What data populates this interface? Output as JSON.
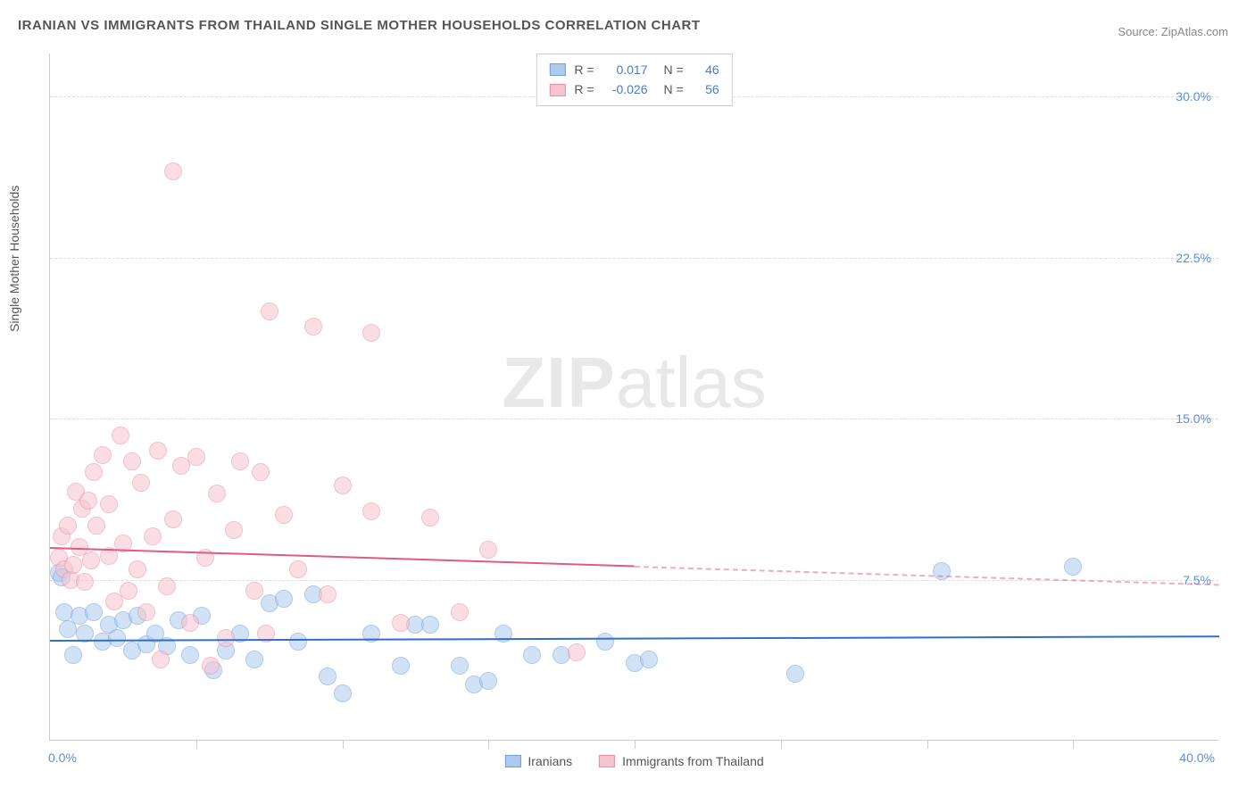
{
  "title": "IRANIAN VS IMMIGRANTS FROM THAILAND SINGLE MOTHER HOUSEHOLDS CORRELATION CHART",
  "source_prefix": "Source: ",
  "source_link": "ZipAtlas.com",
  "y_axis_label": "Single Mother Households",
  "watermark_bold": "ZIP",
  "watermark_light": "atlas",
  "chart": {
    "type": "scatter",
    "xlim": [
      0,
      40
    ],
    "ylim": [
      0,
      32
    ],
    "x_ticks": [
      0,
      5,
      10,
      15,
      20,
      25,
      30,
      35,
      40
    ],
    "y_ticks": [
      7.5,
      15.0,
      22.5,
      30.0
    ],
    "y_tick_labels": [
      "7.5%",
      "15.0%",
      "22.5%",
      "30.0%"
    ],
    "x_start_label": "0.0%",
    "x_end_label": "40.0%",
    "background_color": "#ffffff",
    "grid_color": "#dddddd",
    "marker_radius": 10,
    "marker_opacity": 0.55,
    "series": [
      {
        "name": "Iranians",
        "color_fill": "#aecbef",
        "color_stroke": "#6f9fdc",
        "R_label": "R =",
        "R": "0.017",
        "N_label": "N =",
        "N": "46",
        "trend": {
          "y_start": 4.7,
          "y_end": 4.9,
          "x_solid_end": 40,
          "color": "#2f6fc9"
        },
        "points": [
          [
            0.3,
            7.8
          ],
          [
            0.4,
            7.6
          ],
          [
            0.5,
            6.0
          ],
          [
            0.6,
            5.2
          ],
          [
            0.8,
            4.0
          ],
          [
            1.0,
            5.8
          ],
          [
            1.2,
            5.0
          ],
          [
            1.5,
            6.0
          ],
          [
            1.8,
            4.6
          ],
          [
            2.0,
            5.4
          ],
          [
            2.3,
            4.8
          ],
          [
            2.5,
            5.6
          ],
          [
            2.8,
            4.2
          ],
          [
            3.0,
            5.8
          ],
          [
            3.3,
            4.5
          ],
          [
            3.6,
            5.0
          ],
          [
            4.0,
            4.4
          ],
          [
            4.4,
            5.6
          ],
          [
            4.8,
            4.0
          ],
          [
            5.2,
            5.8
          ],
          [
            5.6,
            3.3
          ],
          [
            6.0,
            4.2
          ],
          [
            6.5,
            5.0
          ],
          [
            7.0,
            3.8
          ],
          [
            7.5,
            6.4
          ],
          [
            8.0,
            6.6
          ],
          [
            8.5,
            4.6
          ],
          [
            9.0,
            6.8
          ],
          [
            9.5,
            3.0
          ],
          [
            10.0,
            2.2
          ],
          [
            11.0,
            5.0
          ],
          [
            12.0,
            3.5
          ],
          [
            12.5,
            5.4
          ],
          [
            13.0,
            5.4
          ],
          [
            14.0,
            3.5
          ],
          [
            14.5,
            2.6
          ],
          [
            15.0,
            2.8
          ],
          [
            15.5,
            5.0
          ],
          [
            16.5,
            4.0
          ],
          [
            17.5,
            4.0
          ],
          [
            19.0,
            4.6
          ],
          [
            20.0,
            3.6
          ],
          [
            20.5,
            3.8
          ],
          [
            25.5,
            3.1
          ],
          [
            30.5,
            7.9
          ],
          [
            35.0,
            8.1
          ]
        ]
      },
      {
        "name": "Immigrants from Thailand",
        "color_fill": "#f6c4ce",
        "color_stroke": "#e88fa3",
        "R_label": "R =",
        "R": "-0.026",
        "N_label": "N =",
        "N": "56",
        "trend": {
          "y_start": 9.0,
          "y_end": 7.3,
          "x_solid_end": 20,
          "color": "#e05a86"
        },
        "points": [
          [
            0.3,
            8.5
          ],
          [
            0.4,
            9.5
          ],
          [
            0.5,
            8.0
          ],
          [
            0.6,
            10.0
          ],
          [
            0.7,
            7.5
          ],
          [
            0.8,
            8.2
          ],
          [
            0.9,
            11.6
          ],
          [
            1.0,
            9.0
          ],
          [
            1.1,
            10.8
          ],
          [
            1.2,
            7.4
          ],
          [
            1.3,
            11.2
          ],
          [
            1.4,
            8.4
          ],
          [
            1.5,
            12.5
          ],
          [
            1.6,
            10.0
          ],
          [
            1.8,
            13.3
          ],
          [
            2.0,
            8.6
          ],
          [
            2.0,
            11.0
          ],
          [
            2.2,
            6.5
          ],
          [
            2.4,
            14.2
          ],
          [
            2.5,
            9.2
          ],
          [
            2.7,
            7.0
          ],
          [
            2.8,
            13.0
          ],
          [
            3.0,
            8.0
          ],
          [
            3.1,
            12.0
          ],
          [
            3.3,
            6.0
          ],
          [
            3.5,
            9.5
          ],
          [
            3.7,
            13.5
          ],
          [
            3.8,
            3.8
          ],
          [
            4.0,
            7.2
          ],
          [
            4.2,
            10.3
          ],
          [
            4.2,
            26.5
          ],
          [
            4.5,
            12.8
          ],
          [
            4.8,
            5.5
          ],
          [
            5.0,
            13.2
          ],
          [
            5.3,
            8.5
          ],
          [
            5.5,
            3.5
          ],
          [
            5.7,
            11.5
          ],
          [
            6.0,
            4.8
          ],
          [
            6.3,
            9.8
          ],
          [
            6.5,
            13.0
          ],
          [
            7.0,
            7.0
          ],
          [
            7.2,
            12.5
          ],
          [
            7.4,
            5.0
          ],
          [
            7.5,
            20.0
          ],
          [
            8.0,
            10.5
          ],
          [
            8.5,
            8.0
          ],
          [
            9.0,
            19.3
          ],
          [
            9.5,
            6.8
          ],
          [
            10.0,
            11.9
          ],
          [
            11.0,
            10.7
          ],
          [
            11.0,
            19.0
          ],
          [
            12.0,
            5.5
          ],
          [
            13.0,
            10.4
          ],
          [
            14.0,
            6.0
          ],
          [
            15.0,
            8.9
          ],
          [
            18.0,
            4.1
          ]
        ]
      }
    ]
  }
}
